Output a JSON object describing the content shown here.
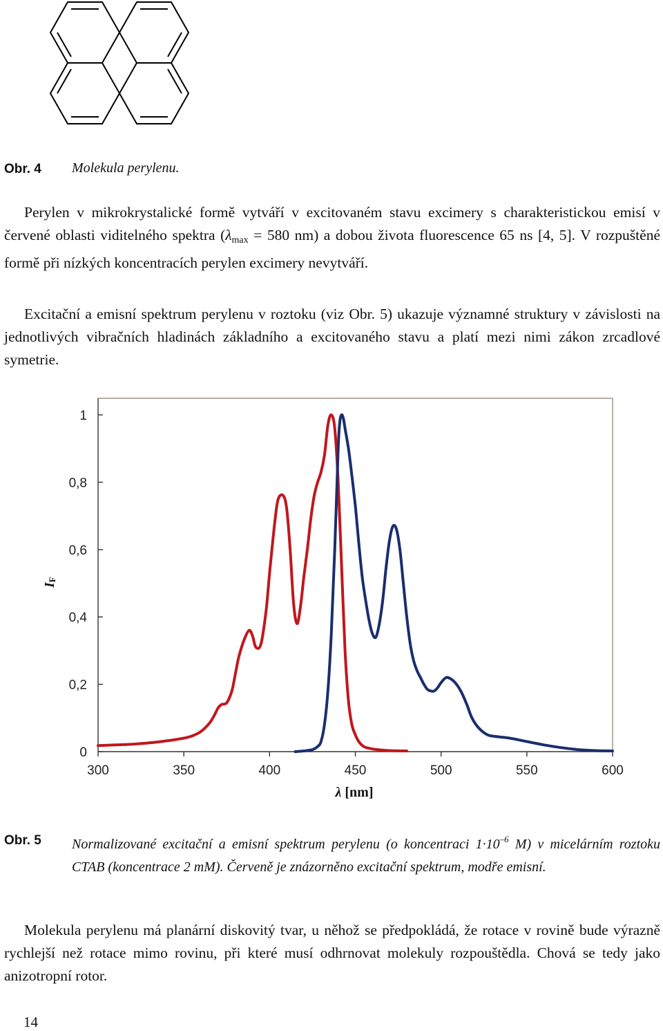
{
  "figure4": {
    "label": "Obr. 4",
    "caption": "Molekula perylenu."
  },
  "para1": {
    "text_before": "Perylen v mikrokrystalické formě vytváří v excitovaném stavu excimery s charakteristickou emisí v červené oblasti viditelného spektra (",
    "lambda": "λ",
    "lambda_sub": "max",
    "text_after": " = 580 nm) a dobou života fluorescence 65 ns [4, 5]. V rozpuštěné formě při nízkých koncentracích perylen excimery nevytváří."
  },
  "para2": {
    "text": "Excitační a emisní spektrum perylenu v roztoku (viz Obr. 5) ukazuje významné struktury v závislosti na jednotlivých vibračních hladinách základního a excitovaného stavu a platí mezi nimi zákon zrcadlové symetrie."
  },
  "figure5": {
    "label": "Obr. 5",
    "caption_part1": "Normalizované excitační a emisní spektrum perylenu (o koncentraci 1",
    "caption_dot": "·",
    "caption_ten": "10",
    "caption_exp": "–6",
    "caption_part2": " M) v micelárním roztoku CTAB (koncentrace 2 mM). Červeně je znázorněno excitační spektrum, modře emisní."
  },
  "para3": {
    "text": "Molekula perylenu má planární diskovitý tvar, u něhož se předpokládá, že rotace v rovině bude výrazně rychlejší než rotace mimo rovinu, při které musí odhrnovat molekuly rozpouštědla. Chová se tedy jako anizotropní rotor."
  },
  "page_number": "14",
  "chart_data": {
    "type": "line",
    "xlabel_symbol": "λ",
    "xlabel_unit": " [nm]",
    "ylabel_symbol": "I",
    "ylabel_sub": "F",
    "xlim": [
      300,
      600
    ],
    "ylim": [
      0,
      1
    ],
    "x_ticks": [
      300,
      350,
      400,
      450,
      500,
      550,
      600
    ],
    "x_tick_labels": [
      "300",
      "350",
      "400",
      "450",
      "500",
      "550",
      "600"
    ],
    "y_ticks": [
      0,
      0.2,
      0.4,
      0.6,
      0.8,
      1
    ],
    "y_tick_labels": [
      "0",
      "0,2",
      "0,4",
      "0,6",
      "0,8",
      "1"
    ],
    "grid": false,
    "series": [
      {
        "color": "#c0171d",
        "x": [
          300,
          310,
          320,
          330,
          340,
          350,
          355,
          360,
          365,
          368,
          370,
          372,
          375,
          378,
          380,
          382,
          385,
          388,
          390,
          392,
          395,
          398,
          400,
          403,
          405,
          408,
          410,
          412,
          414,
          416,
          418,
          420,
          422,
          424,
          426,
          428,
          430,
          432,
          434,
          436,
          438,
          440,
          442,
          444,
          446,
          448,
          450,
          452,
          455,
          460,
          465,
          470,
          480
        ],
        "y": [
          0.018,
          0.02,
          0.022,
          0.026,
          0.032,
          0.04,
          0.047,
          0.06,
          0.085,
          0.11,
          0.13,
          0.14,
          0.145,
          0.18,
          0.23,
          0.28,
          0.33,
          0.36,
          0.345,
          0.31,
          0.32,
          0.42,
          0.53,
          0.68,
          0.75,
          0.76,
          0.72,
          0.6,
          0.44,
          0.38,
          0.43,
          0.52,
          0.6,
          0.69,
          0.76,
          0.8,
          0.83,
          0.88,
          0.97,
          1.0,
          0.96,
          0.8,
          0.55,
          0.3,
          0.15,
          0.08,
          0.05,
          0.03,
          0.015,
          0.008,
          0.005,
          0.003,
          0.002
        ]
      },
      {
        "color": "#1a2e6e",
        "x": [
          415,
          420,
          425,
          428,
          430,
          432,
          434,
          436,
          438,
          440,
          441,
          442,
          443,
          444,
          446,
          448,
          450,
          452,
          454,
          456,
          458,
          460,
          462,
          464,
          466,
          468,
          470,
          472,
          474,
          476,
          478,
          480,
          482,
          484,
          486,
          488,
          490,
          492,
          494,
          496,
          498,
          500,
          503,
          506,
          509,
          512,
          515,
          518,
          522,
          527,
          532,
          540,
          550,
          560,
          570,
          580,
          590,
          600
        ],
        "y": [
          0.0,
          0.002,
          0.006,
          0.015,
          0.03,
          0.08,
          0.18,
          0.35,
          0.6,
          0.9,
          0.98,
          1.0,
          0.99,
          0.96,
          0.9,
          0.82,
          0.73,
          0.62,
          0.52,
          0.45,
          0.39,
          0.35,
          0.34,
          0.38,
          0.45,
          0.55,
          0.63,
          0.67,
          0.66,
          0.6,
          0.5,
          0.4,
          0.32,
          0.27,
          0.24,
          0.22,
          0.2,
          0.185,
          0.18,
          0.18,
          0.19,
          0.205,
          0.22,
          0.215,
          0.2,
          0.175,
          0.14,
          0.1,
          0.07,
          0.05,
          0.045,
          0.04,
          0.03,
          0.02,
          0.012,
          0.006,
          0.003,
          0.002
        ]
      }
    ]
  }
}
